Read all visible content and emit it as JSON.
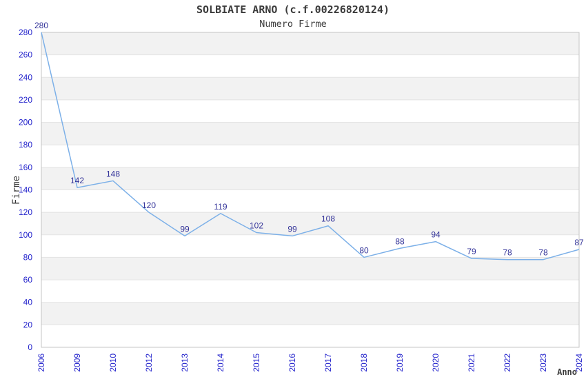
{
  "page": {
    "title": "SOLBIATE ARNO (c.f.00226820124)",
    "subtitle": "Numero Firme"
  },
  "chart_data": {
    "type": "line",
    "title": "SOLBIATE ARNO (c.f.00226820124)",
    "subtitle": "Numero Firme",
    "xlabel": "Anno",
    "ylabel": "Firme",
    "categories": [
      "2006",
      "2009",
      "2010",
      "2012",
      "2013",
      "2014",
      "2015",
      "2016",
      "2017",
      "2018",
      "2019",
      "2020",
      "2021",
      "2022",
      "2023",
      "2024"
    ],
    "values": [
      280,
      142,
      148,
      120,
      99,
      119,
      102,
      99,
      108,
      80,
      88,
      94,
      79,
      78,
      78,
      87
    ],
    "ylim": [
      0,
      280
    ],
    "ytick_step": 20,
    "grid": true,
    "band_fill": true,
    "legend": "none",
    "colors": {
      "line": "#7cb0e8",
      "tick_label": "#2424cc",
      "data_label": "#333399",
      "band": "#f2f2f2",
      "gridline": "#e3e3e3",
      "border": "#c4c4c4",
      "title_text": "#3b3b3b"
    }
  }
}
